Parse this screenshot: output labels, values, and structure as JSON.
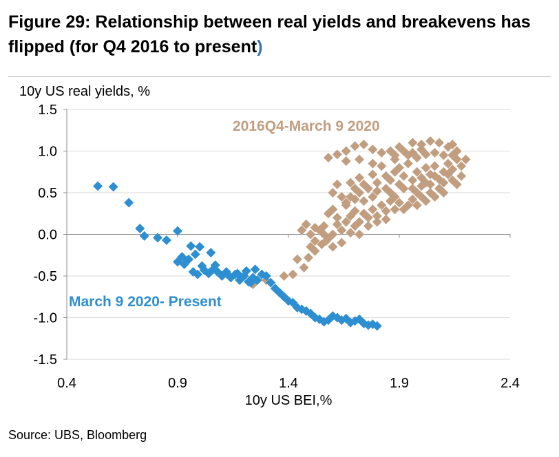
{
  "header": {
    "title": "Figure 29: Relationship between real yields and breakevens has flipped (for Q4 2016 to present",
    "title_close": ")"
  },
  "footer": {
    "source": "Source:  UBS, Bloomberg"
  },
  "colors": {
    "blue": "#2e8fd0",
    "tan": "#c19e80",
    "grid": "#d9d9d9",
    "axis": "#8c8c8c",
    "title_accent": "#2e75b6"
  },
  "chart_data": {
    "type": "scatter",
    "title": "",
    "xlabel": "10y US BEI,%",
    "ylabel": "10y US real yields, %",
    "xlim": [
      0.4,
      2.4
    ],
    "ylim": [
      -1.5,
      1.5
    ],
    "xticks": [
      "0.4",
      "0.9",
      "1.4",
      "1.9",
      "2.4"
    ],
    "yticks": [
      "1.5",
      "1.0",
      "0.5",
      "0.0",
      "-0.5",
      "-1.0",
      "-1.5"
    ],
    "grid": "horizontal",
    "series": [
      {
        "name": "2016Q4-March 9 2020",
        "color": "#c19e80",
        "points": [
          [
            1.24,
            -0.6
          ],
          [
            1.3,
            -0.55
          ],
          [
            1.38,
            -0.5
          ],
          [
            1.42,
            -0.48
          ],
          [
            1.47,
            -0.4
          ],
          [
            1.44,
            -0.3
          ],
          [
            1.49,
            -0.28
          ],
          [
            1.5,
            -0.15
          ],
          [
            1.52,
            -0.2
          ],
          [
            1.55,
            -0.12
          ],
          [
            1.57,
            -0.08
          ],
          [
            1.6,
            -0.15
          ],
          [
            1.64,
            -0.1
          ],
          [
            1.54,
            0.05
          ],
          [
            1.6,
            0.0
          ],
          [
            1.64,
            0.05
          ],
          [
            1.68,
            0.02
          ],
          [
            1.72,
            0.0
          ],
          [
            1.56,
            0.1
          ],
          [
            1.62,
            0.12
          ],
          [
            1.66,
            0.15
          ],
          [
            1.7,
            0.1
          ],
          [
            1.72,
            0.15
          ],
          [
            1.68,
            0.22
          ],
          [
            1.7,
            0.28
          ],
          [
            1.74,
            0.25
          ],
          [
            1.76,
            0.2
          ],
          [
            1.78,
            0.3
          ],
          [
            1.8,
            0.22
          ],
          [
            1.82,
            0.35
          ],
          [
            1.84,
            0.28
          ],
          [
            1.74,
            0.4
          ],
          [
            1.78,
            0.45
          ],
          [
            1.8,
            0.52
          ],
          [
            1.86,
            0.4
          ],
          [
            1.88,
            0.45
          ],
          [
            1.9,
            0.38
          ],
          [
            1.92,
            0.3
          ],
          [
            1.94,
            0.35
          ],
          [
            1.96,
            0.42
          ],
          [
            1.98,
            0.35
          ],
          [
            2.0,
            0.45
          ],
          [
            2.02,
            0.4
          ],
          [
            2.04,
            0.5
          ],
          [
            2.06,
            0.45
          ],
          [
            2.08,
            0.55
          ],
          [
            2.1,
            0.5
          ],
          [
            1.76,
            0.55
          ],
          [
            1.8,
            0.62
          ],
          [
            1.84,
            0.55
          ],
          [
            1.86,
            0.65
          ],
          [
            1.9,
            0.6
          ],
          [
            1.92,
            0.7
          ],
          [
            1.96,
            0.65
          ],
          [
            1.98,
            0.75
          ],
          [
            2.0,
            0.68
          ],
          [
            2.02,
            0.8
          ],
          [
            2.04,
            0.72
          ],
          [
            2.06,
            0.82
          ],
          [
            2.1,
            0.75
          ],
          [
            2.12,
            0.85
          ],
          [
            2.14,
            0.78
          ],
          [
            2.16,
            0.9
          ],
          [
            2.18,
            0.82
          ],
          [
            2.2,
            0.9
          ],
          [
            2.16,
            1.0
          ],
          [
            2.12,
            1.05
          ],
          [
            2.08,
            1.1
          ],
          [
            2.04,
            1.12
          ],
          [
            2.0,
            1.08
          ],
          [
            1.96,
            1.1
          ],
          [
            1.9,
            1.05
          ],
          [
            1.86,
            1.0
          ],
          [
            1.82,
            0.98
          ],
          [
            1.78,
            1.02
          ],
          [
            1.74,
            1.08
          ],
          [
            1.7,
            1.06
          ],
          [
            1.66,
            1.0
          ],
          [
            1.62,
            0.96
          ],
          [
            1.58,
            0.92
          ],
          [
            1.66,
            0.88
          ],
          [
            1.72,
            0.9
          ],
          [
            1.78,
            0.85
          ],
          [
            1.82,
            0.82
          ],
          [
            1.88,
            0.9
          ],
          [
            1.94,
            0.95
          ],
          [
            1.98,
            0.92
          ],
          [
            2.02,
            0.96
          ],
          [
            2.06,
            0.98
          ],
          [
            2.12,
            0.72
          ],
          [
            2.08,
            0.66
          ],
          [
            2.04,
            0.6
          ],
          [
            2.14,
            0.65
          ],
          [
            1.78,
            0.72
          ],
          [
            1.72,
            0.68
          ],
          [
            1.68,
            0.62
          ],
          [
            1.62,
            0.6
          ],
          [
            1.6,
            0.5
          ],
          [
            1.64,
            0.45
          ],
          [
            1.66,
            0.35
          ],
          [
            1.58,
            0.25
          ],
          [
            1.6,
            0.3
          ],
          [
            1.66,
            0.38
          ],
          [
            1.7,
            0.42
          ],
          [
            1.72,
            0.5
          ],
          [
            1.74,
            0.6
          ],
          [
            1.84,
            0.7
          ],
          [
            1.88,
            0.75
          ],
          [
            1.9,
            0.8
          ],
          [
            1.94,
            0.85
          ],
          [
            2.02,
            0.62
          ],
          [
            1.96,
            0.55
          ],
          [
            1.98,
            0.5
          ],
          [
            1.92,
            0.55
          ],
          [
            1.86,
            0.5
          ],
          [
            1.88,
            0.3
          ],
          [
            1.84,
            0.18
          ],
          [
            1.8,
            0.15
          ],
          [
            1.76,
            0.1
          ],
          [
            1.58,
            -0.05
          ],
          [
            1.52,
            0.08
          ],
          [
            1.48,
            0.12
          ],
          [
            1.5,
            0.0
          ],
          [
            1.46,
            0.05
          ],
          [
            1.52,
            -0.08
          ],
          [
            1.56,
            0.0
          ],
          [
            1.62,
            0.2
          ],
          [
            1.68,
            0.45
          ],
          [
            1.7,
            0.55
          ],
          [
            2.14,
            0.95
          ],
          [
            2.18,
            0.7
          ],
          [
            2.16,
            0.6
          ],
          [
            2.1,
            0.62
          ],
          [
            2.06,
            0.7
          ],
          [
            2.1,
            0.95
          ],
          [
            2.14,
            1.08
          ],
          [
            2.0,
            0.58
          ],
          [
            2.0,
            1.02
          ],
          [
            1.96,
            0.98
          ],
          [
            1.92,
            1.0
          ],
          [
            1.88,
            0.95
          ]
        ]
      },
      {
        "name": "March 9 2020- Present",
        "color": "#2e8fd0",
        "points": [
          [
            0.54,
            0.58
          ],
          [
            0.61,
            0.57
          ],
          [
            0.68,
            0.38
          ],
          [
            0.73,
            0.07
          ],
          [
            0.75,
            -0.02
          ],
          [
            0.81,
            -0.04
          ],
          [
            0.85,
            -0.07
          ],
          [
            0.9,
            0.04
          ],
          [
            0.9,
            -0.33
          ],
          [
            0.92,
            -0.27
          ],
          [
            0.93,
            -0.36
          ],
          [
            0.95,
            -0.3
          ],
          [
            0.96,
            -0.14
          ],
          [
            0.98,
            -0.24
          ],
          [
            1.0,
            -0.15
          ],
          [
            0.97,
            -0.45
          ],
          [
            0.99,
            -0.48
          ],
          [
            1.01,
            -0.38
          ],
          [
            1.02,
            -0.43
          ],
          [
            1.04,
            -0.47
          ],
          [
            1.05,
            -0.22
          ],
          [
            1.07,
            -0.37
          ],
          [
            1.08,
            -0.45
          ],
          [
            1.1,
            -0.5
          ],
          [
            1.12,
            -0.47
          ],
          [
            1.14,
            -0.52
          ],
          [
            1.16,
            -0.48
          ],
          [
            1.18,
            -0.55
          ],
          [
            1.2,
            -0.5
          ],
          [
            1.22,
            -0.57
          ],
          [
            1.24,
            -0.52
          ],
          [
            1.26,
            -0.55
          ],
          [
            1.28,
            -0.48
          ],
          [
            1.3,
            -0.5
          ],
          [
            1.32,
            -0.58
          ],
          [
            1.34,
            -0.65
          ],
          [
            1.36,
            -0.7
          ],
          [
            1.38,
            -0.75
          ],
          [
            1.4,
            -0.8
          ],
          [
            1.42,
            -0.82
          ],
          [
            1.44,
            -0.88
          ],
          [
            1.46,
            -0.9
          ],
          [
            1.48,
            -0.92
          ],
          [
            1.5,
            -0.95
          ],
          [
            1.52,
            -1.0
          ],
          [
            1.54,
            -1.02
          ],
          [
            1.56,
            -1.05
          ],
          [
            1.58,
            -1.03
          ],
          [
            1.6,
            -0.98
          ],
          [
            1.62,
            -1.0
          ],
          [
            1.64,
            -1.03
          ],
          [
            1.66,
            -1.01
          ],
          [
            1.68,
            -1.06
          ],
          [
            1.7,
            -1.04
          ],
          [
            1.72,
            -1.02
          ],
          [
            1.74,
            -1.07
          ],
          [
            1.76,
            -1.09
          ],
          [
            1.78,
            -1.08
          ],
          [
            1.8,
            -1.1
          ],
          [
            1.12,
            -0.45
          ],
          [
            1.06,
            -0.42
          ],
          [
            1.17,
            -0.47
          ],
          [
            1.21,
            -0.44
          ],
          [
            1.25,
            -0.42
          ],
          [
            1.23,
            -0.58
          ]
        ]
      }
    ],
    "annotations": [
      {
        "text": "2016Q4-March 9 2020",
        "color": "#c19e80"
      },
      {
        "text": "March 9 2020- Present",
        "color": "#2e8fd0"
      }
    ]
  }
}
